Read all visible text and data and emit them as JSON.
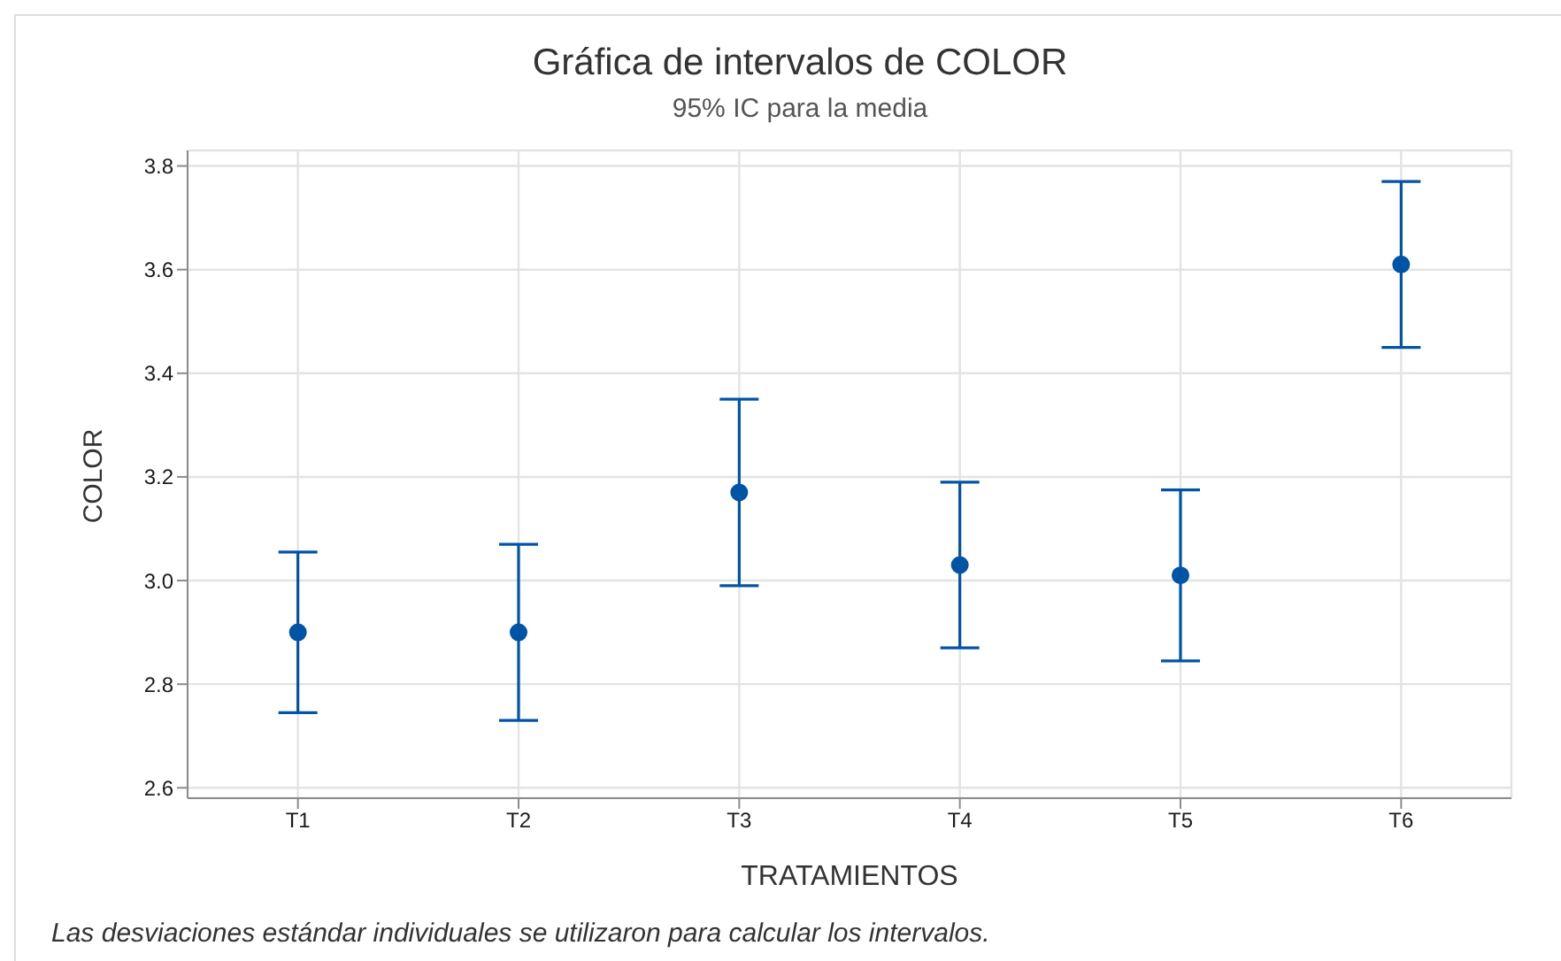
{
  "chart_data": {
    "type": "scatter",
    "title": "Gráfica de intervalos de COLOR",
    "subtitle": "95% IC para la media",
    "xlabel": "TRATAMIENTOS",
    "ylabel": "COLOR",
    "annotations": [
      "Las desviaciones estándar individuales se utilizaron para calcular los intervalos."
    ],
    "categories": [
      "T1",
      "T2",
      "T3",
      "T4",
      "T5",
      "T6"
    ],
    "series": [
      {
        "color": "#0054a6",
        "values": [
          2.9,
          2.9,
          3.17,
          3.03,
          3.01,
          3.61
        ],
        "errors": [
          0.155,
          0.17,
          0.18,
          0.16,
          0.165,
          0.16
        ]
      }
    ],
    "ylim": [
      2.58,
      3.83
    ],
    "yticks": [
      2.6,
      2.8,
      {
        "value": 3,
        "label": "3.0"
      },
      3.2,
      3.4,
      3.6,
      3.8
    ],
    "grid": true,
    "marker": "circle"
  }
}
